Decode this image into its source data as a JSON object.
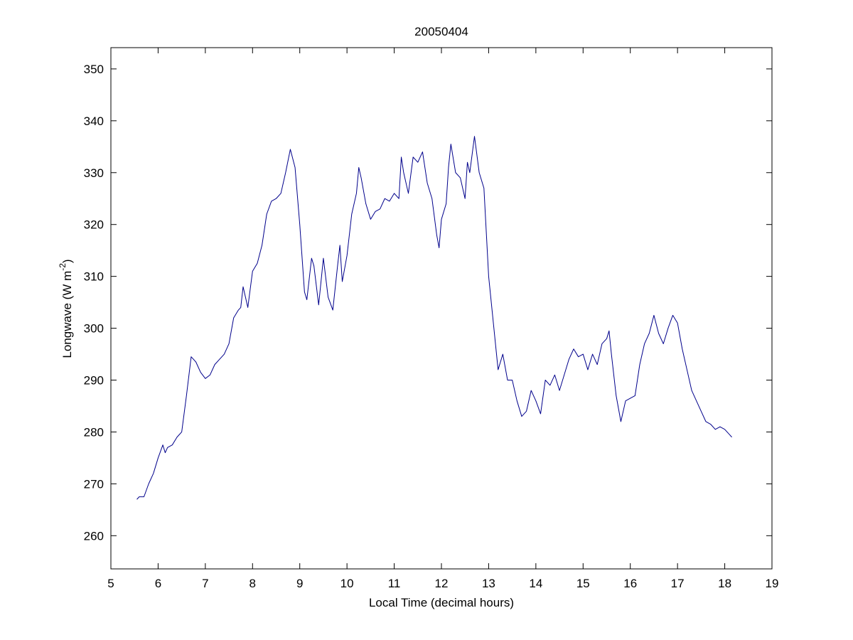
{
  "chart_data": {
    "type": "line",
    "title": "20050404",
    "xlabel": "Local Time (decimal hours)",
    "ylabel": [
      "Longwave (W m",
      "-2",
      ")"
    ],
    "xlim": [
      5,
      19
    ],
    "ylim": [
      253.6,
      354.1
    ],
    "xticks": [
      5,
      6,
      7,
      8,
      9,
      10,
      11,
      12,
      13,
      14,
      15,
      16,
      17,
      18,
      19
    ],
    "yticks": [
      260,
      270,
      280,
      290,
      300,
      310,
      320,
      330,
      340,
      350
    ],
    "grid": false,
    "x": [
      5.55,
      5.6,
      5.7,
      5.8,
      5.9,
      6.0,
      6.1,
      6.15,
      6.2,
      6.3,
      6.4,
      6.5,
      6.6,
      6.7,
      6.8,
      6.9,
      7.0,
      7.1,
      7.2,
      7.3,
      7.4,
      7.5,
      7.6,
      7.7,
      7.75,
      7.8,
      7.9,
      8.0,
      8.1,
      8.2,
      8.3,
      8.4,
      8.5,
      8.6,
      8.7,
      8.8,
      8.9,
      9.0,
      9.1,
      9.15,
      9.25,
      9.3,
      9.4,
      9.5,
      9.6,
      9.7,
      9.8,
      9.85,
      9.9,
      10.0,
      10.1,
      10.2,
      10.25,
      10.3,
      10.4,
      10.5,
      10.6,
      10.7,
      10.8,
      10.9,
      11.0,
      11.1,
      11.15,
      11.2,
      11.3,
      11.4,
      11.5,
      11.6,
      11.7,
      11.8,
      11.9,
      11.95,
      12.0,
      12.1,
      12.15,
      12.2,
      12.3,
      12.4,
      12.5,
      12.55,
      12.6,
      12.7,
      12.8,
      12.9,
      13.0,
      13.1,
      13.2,
      13.3,
      13.4,
      13.5,
      13.6,
      13.7,
      13.8,
      13.9,
      14.0,
      14.1,
      14.2,
      14.3,
      14.4,
      14.5,
      14.6,
      14.7,
      14.8,
      14.9,
      15.0,
      15.1,
      15.2,
      15.3,
      15.4,
      15.5,
      15.55,
      15.6,
      15.7,
      15.8,
      15.9,
      16.0,
      16.1,
      16.2,
      16.3,
      16.4,
      16.5,
      16.6,
      16.7,
      16.8,
      16.9,
      17.0,
      17.1,
      17.2,
      17.3,
      17.4,
      17.5,
      17.6,
      17.7,
      17.8,
      17.9,
      18.0,
      18.1,
      18.15
    ],
    "series": [
      {
        "color": "#00008b",
        "values": [
          267,
          267.5,
          267.5,
          270,
          272,
          275,
          277.5,
          276,
          277,
          277.5,
          279,
          280,
          287,
          294.5,
          293.5,
          291.5,
          290.3,
          291,
          293,
          294,
          295,
          297,
          302,
          303.5,
          304,
          308,
          304,
          311,
          312.5,
          316,
          322,
          324.5,
          325,
          326,
          330,
          334.5,
          331,
          320,
          307,
          305.5,
          313.5,
          312,
          304.5,
          313.5,
          306,
          303.5,
          312,
          316,
          309,
          314,
          322,
          326,
          331,
          329,
          324,
          321,
          322.5,
          323,
          325,
          324.5,
          326,
          325,
          333,
          330,
          326,
          333,
          332,
          334,
          328,
          325,
          318,
          315.5,
          321,
          324,
          331,
          335.5,
          330,
          329,
          325,
          332,
          330,
          337,
          330,
          327,
          310,
          301,
          292,
          295,
          290,
          290,
          286,
          283,
          284,
          288,
          286,
          283.5,
          290,
          289,
          291,
          288,
          291,
          294,
          296,
          294.5,
          295,
          292,
          295,
          293,
          297,
          298,
          299.5,
          295,
          287,
          282,
          286,
          286.5,
          287,
          293,
          297,
          299,
          302.5,
          299,
          297,
          300,
          302.5,
          301,
          296,
          292,
          288,
          286,
          284,
          282,
          281.5,
          280.5,
          281,
          280.5,
          279.5,
          279
        ]
      }
    ]
  }
}
